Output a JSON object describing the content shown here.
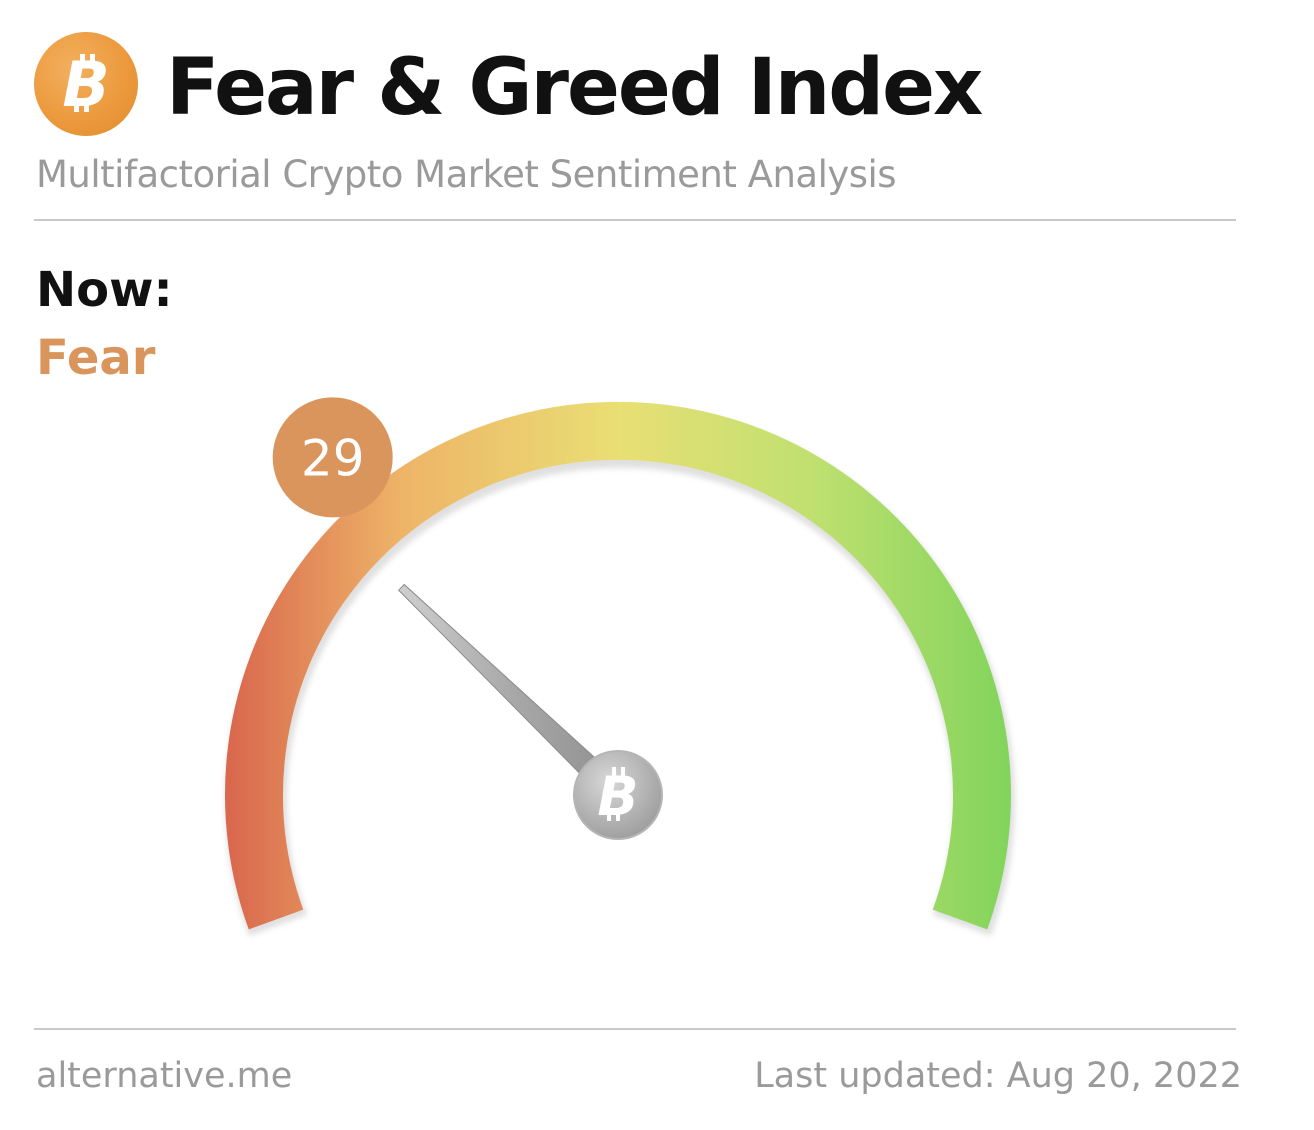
{
  "header": {
    "title": "Fear & Greed Index",
    "subtitle": "Multifactorial Crypto Market Sentiment Analysis",
    "logo_icon": "bitcoin-icon",
    "logo_color": "#ec9a3d"
  },
  "now": {
    "label": "Now:",
    "classification": "Fear",
    "classification_color": "#d9955c"
  },
  "chart_data": {
    "type": "gauge",
    "value": 29,
    "range": [
      0,
      100
    ],
    "badge_color": "#d9955c",
    "gradient_colors": [
      "#d9684e",
      "#eeb468",
      "#e9df74",
      "#bfe070",
      "#82d45c"
    ],
    "hub_icon": "bitcoin-icon"
  },
  "footer": {
    "source": "alternative.me",
    "updated": "Last updated: Aug 20, 2022"
  }
}
